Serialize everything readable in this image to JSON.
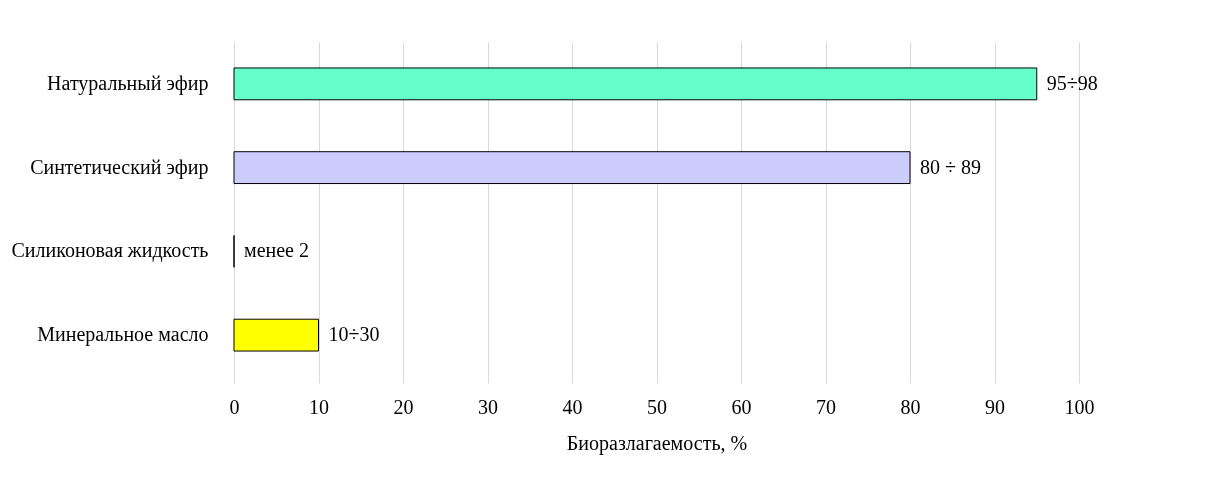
{
  "chart_data": {
    "type": "bar",
    "orientation": "horizontal",
    "xlabel": "Биоразлагаемость, %",
    "categories": [
      "Натуральный эфир",
      "Синтетический эфир",
      "Силиконовая жидкость",
      "Минеральное масло"
    ],
    "values": [
      95,
      80,
      0,
      10
    ],
    "colors": [
      "#66ffcc",
      "#ccccff",
      "#000000",
      "#ffff00"
    ],
    "value_labels": [
      "95÷98",
      "80 ÷ 89",
      "менее 2",
      "10÷30"
    ],
    "xlim": [
      0,
      100
    ],
    "xticks": [
      0,
      10,
      20,
      30,
      40,
      50,
      60,
      70,
      80,
      90,
      100
    ],
    "grid": "x"
  }
}
